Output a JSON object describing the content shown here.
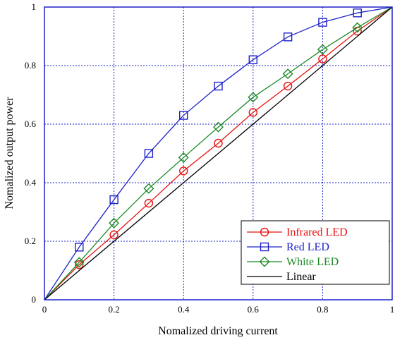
{
  "chart_data": {
    "type": "line",
    "title": "",
    "xlabel": "Nomalized driving current",
    "ylabel": "Nomalized output power",
    "xlim": [
      0,
      1
    ],
    "ylim": [
      0,
      1
    ],
    "xticks": [
      "0",
      "0.2",
      "0.4",
      "0.6",
      "0.8",
      "1"
    ],
    "yticks": [
      "0",
      "0.2",
      "0.4",
      "0.6",
      "0.8",
      "1"
    ],
    "grid": true,
    "legend_position": "bottom-right",
    "series": [
      {
        "name": "Infrared LED",
        "color": "#e8120f",
        "marker": "circle",
        "x": [
          0,
          0.1,
          0.2,
          0.3,
          0.4,
          0.5,
          0.6,
          0.7,
          0.8,
          0.9,
          1.0
        ],
        "y": [
          0,
          0.12,
          0.222,
          0.33,
          0.44,
          0.535,
          0.64,
          0.73,
          0.823,
          0.918,
          1.0
        ],
        "marker_x": [
          0.1,
          0.2,
          0.3,
          0.4,
          0.5,
          0.6,
          0.7,
          0.8,
          0.9
        ]
      },
      {
        "name": "Red LED",
        "color": "#1d22c8",
        "marker": "square",
        "x": [
          0,
          0.1,
          0.2,
          0.3,
          0.4,
          0.5,
          0.6,
          0.7,
          0.8,
          0.9,
          1.0
        ],
        "y": [
          0,
          0.18,
          0.342,
          0.5,
          0.63,
          0.73,
          0.82,
          0.898,
          0.948,
          0.98,
          1.0
        ],
        "marker_x": [
          0.1,
          0.2,
          0.3,
          0.4,
          0.5,
          0.6,
          0.7,
          0.8,
          0.9
        ]
      },
      {
        "name": "White LED",
        "color": "#1b8a25",
        "marker": "diamond",
        "x": [
          0,
          0.1,
          0.2,
          0.3,
          0.4,
          0.5,
          0.6,
          0.7,
          0.8,
          0.9,
          1.0
        ],
        "y": [
          0,
          0.128,
          0.262,
          0.38,
          0.486,
          0.59,
          0.692,
          0.772,
          0.855,
          0.93,
          1.0
        ],
        "marker_x": [
          0.1,
          0.2,
          0.3,
          0.4,
          0.5,
          0.6,
          0.7,
          0.8,
          0.9
        ]
      },
      {
        "name": "Linear",
        "color": "#000000",
        "marker": "none",
        "x": [
          0,
          1
        ],
        "y": [
          0,
          1
        ],
        "marker_x": []
      }
    ]
  }
}
